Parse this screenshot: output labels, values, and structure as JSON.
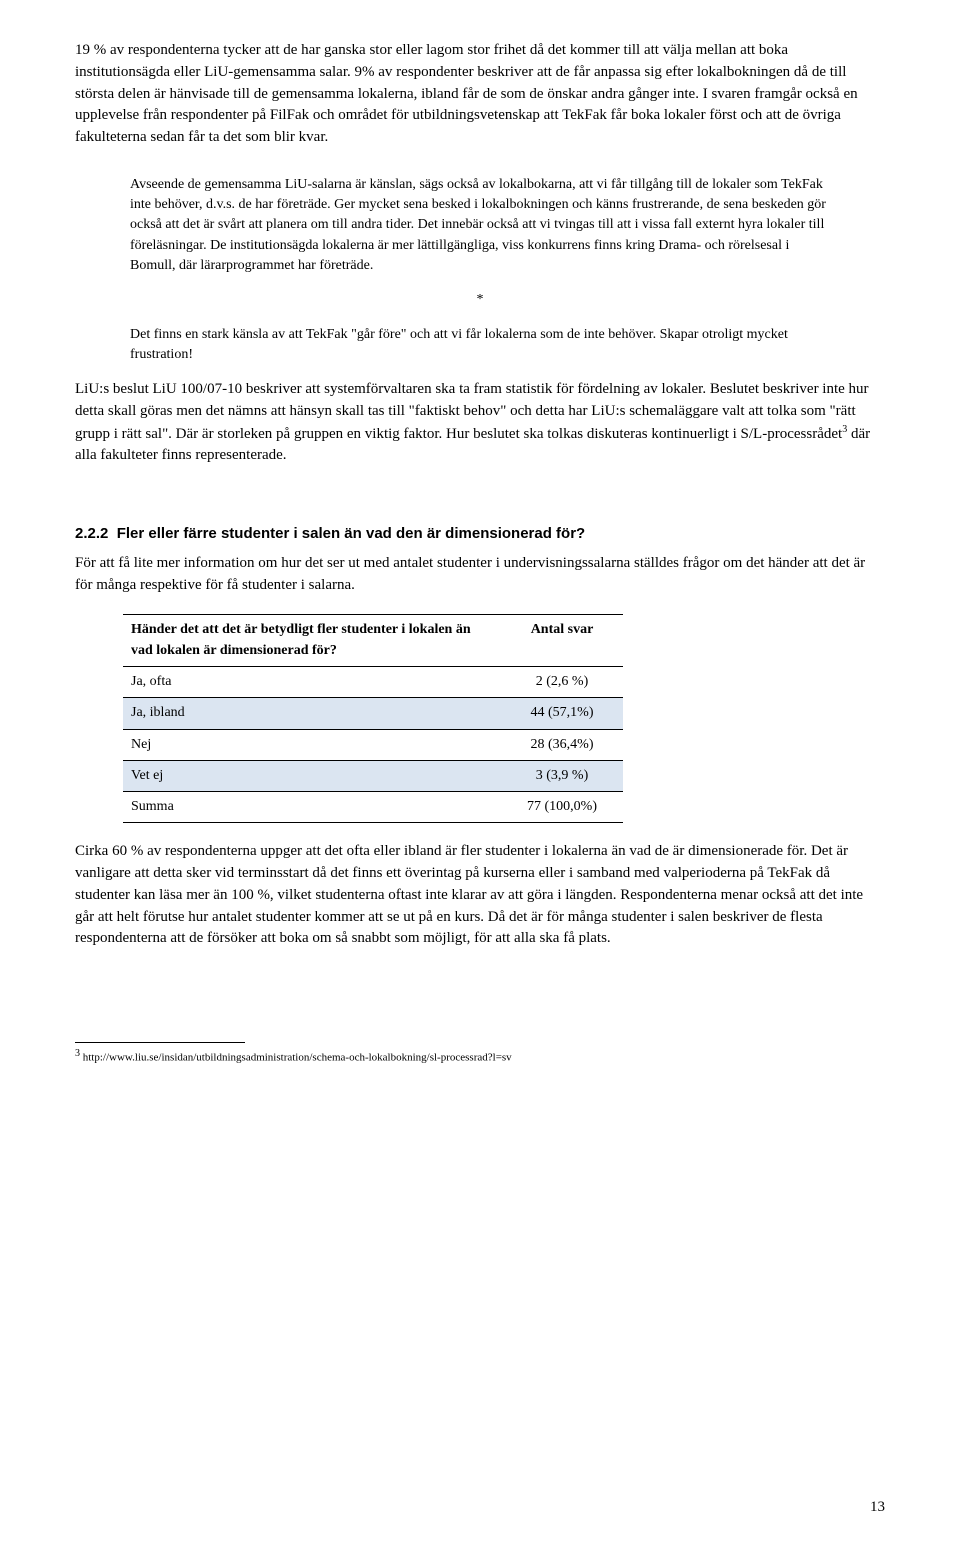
{
  "p1": "19 % av respondenterna tycker att de har ganska stor eller lagom stor frihet då det kommer till att välja mellan att boka institutionsägda eller LiU-gemensamma salar. 9% av respondenter beskriver att de får anpassa sig efter lokalbokningen då de till största delen är hänvisade till de gemensamma lokalerna, ibland får de som de önskar andra gånger inte. I svaren framgår också en upplevelse från respondenter på FilFak och området för utbildningsvetenskap att TekFak får boka lokaler först och att de övriga fakulteterna sedan får ta det som blir kvar.",
  "bq1": "Avseende de gemensamma LiU-salarna är känslan, sägs också av lokalbokarna, att vi får tillgång till de lokaler som TekFak inte behöver, d.v.s. de har företräde. Ger mycket sena besked i lokalbokningen och känns frustrerande, de sena beskeden gör också att det är svårt att planera om till andra tider. Det innebär också att vi tvingas till att i vissa fall externt hyra lokaler till föreläsningar. De institutionsägda lokalerna är mer lättillgängliga, viss konkurrens finns kring Drama- och rörelsesal i Bomull, där lärarprogrammet har företräde.",
  "sep": "*",
  "bq2": "Det finns en stark känsla av att TekFak \"går före\" och att vi får lokalerna som de inte behöver. Skapar otroligt mycket frustration!",
  "p2_pre": "LiU:s beslut LiU 100/07-10 beskriver att systemförvaltaren ska ta fram statistik för fördelning av lokaler. Beslutet beskriver inte hur detta skall göras men det nämns att hänsyn skall tas till \"faktiskt behov\" och detta har LiU:s schemaläggare valt att tolka som \"rätt grupp i rätt sal\". Där är storleken på gruppen en viktig faktor. Hur beslutet ska tolkas diskuteras kontinuerligt i S/L-processrådet",
  "p2_sup": "3",
  "p2_post": " där alla fakulteter finns representerade.",
  "heading_num": "2.2.2",
  "heading_text": "Fler eller färre studenter i salen än vad den är dimensionerad för?",
  "p3": "För att få lite mer information om hur det ser ut med antalet studenter i undervisningssalarna ställdes frågor om det händer att det är för många respektive för få studenter i salarna.",
  "table": {
    "question": "Händer det att det är betydligt fler studenter i lokalen än vad lokalen är dimensionerad för?",
    "answer_header": "Antal svar",
    "rows": [
      {
        "label": "Ja, ofta",
        "value": "2 (2,6 %)",
        "shaded": false
      },
      {
        "label": "Ja, ibland",
        "value": "44 (57,1%)",
        "shaded": true
      },
      {
        "label": "Nej",
        "value": "28 (36,4%)",
        "shaded": false
      },
      {
        "label": "Vet ej",
        "value": "3 (3,9 %)",
        "shaded": true
      },
      {
        "label": "Summa",
        "value": "77 (100,0%)",
        "shaded": false
      }
    ]
  },
  "p4": "Cirka 60 % av respondenterna uppger att det ofta eller ibland är fler studenter i lokalerna än vad de är dimensionerade för. Det är vanligare att detta sker vid terminsstart då det finns ett överintag på kurserna eller i samband med valperioderna på TekFak då studenter kan läsa mer än 100 %, vilket studenterna oftast inte klarar av att göra i längden. Respondenterna menar också att det inte går att helt förutse hur antalet studenter kommer att se ut på en kurs. Då det är för många studenter i salen beskriver de flesta respondenterna att de försöker att boka om så snabbt som möjligt, för att alla ska få plats.",
  "footnote_marker": "3",
  "footnote_text": " http://www.liu.se/insidan/utbildningsadministration/schema-och-lokalbokning/sl-processrad?l=sv",
  "page_number": "13"
}
